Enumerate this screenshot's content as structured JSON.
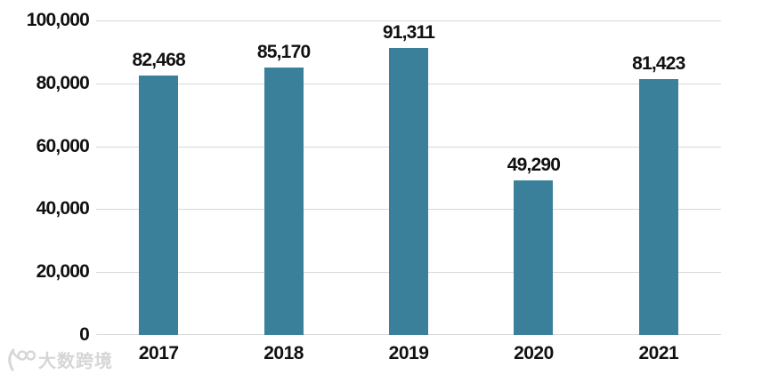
{
  "chart_data": {
    "type": "bar",
    "title": "",
    "xlabel": "",
    "ylabel": "",
    "categories": [
      "2017",
      "2018",
      "2019",
      "2020",
      "2021"
    ],
    "values": [
      82468,
      85170,
      91311,
      49290,
      81423
    ],
    "value_labels": [
      "82,468",
      "85,170",
      "91,311",
      "49,290",
      "81,423"
    ],
    "ylim": [
      0,
      100000
    ],
    "yticks": [
      0,
      20000,
      40000,
      60000,
      80000,
      100000
    ],
    "ytick_labels": [
      "0",
      "20,000",
      "40,000",
      "60,000",
      "80,000",
      "100,000"
    ],
    "grid": true,
    "legend_position": "none",
    "bar_color": "#3A809B",
    "gridline_color": "#D8D8D8",
    "text_color": "#111111"
  },
  "watermark": {
    "icon": "k100-logo-icon",
    "text": "大数跨境",
    "color": "#D6D6D6"
  }
}
